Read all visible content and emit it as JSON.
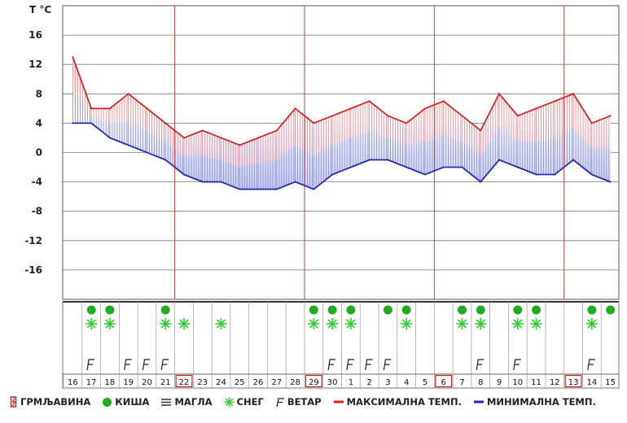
{
  "chart_data": {
    "type": "line",
    "ylabel": "T °C",
    "y_ticks": [
      16,
      12,
      8,
      4,
      0,
      -4,
      -8,
      -12,
      -16
    ],
    "ylim": [
      -20,
      20
    ],
    "x": [
      "16",
      "17",
      "18",
      "19",
      "20",
      "21",
      "22",
      "23",
      "24",
      "25",
      "26",
      "27",
      "28",
      "29",
      "30",
      "1",
      "2",
      "3",
      "4",
      "5",
      "6",
      "7",
      "8",
      "9",
      "10",
      "11",
      "12",
      "13",
      "14",
      "15"
    ],
    "highlighted_days": [
      "22",
      "29",
      "6",
      "13"
    ],
    "series": [
      {
        "name": "МАКСИМАЛНА ТЕМП.",
        "color": "#cc2222",
        "values": [
          13,
          6,
          6,
          8,
          6,
          4,
          2,
          3,
          2,
          1,
          2,
          3,
          6,
          4,
          5,
          6,
          7,
          5,
          4,
          6,
          7,
          5,
          3,
          8,
          5,
          6,
          7,
          8,
          4,
          5
        ]
      },
      {
        "name": "МИНИМАЛНА ТЕМП.",
        "color": "#2222aa",
        "values": [
          4,
          4,
          2,
          1,
          0,
          -1,
          -3,
          -4,
          -4,
          -5,
          -5,
          -5,
          -4,
          -5,
          -3,
          -2,
          -1,
          -1,
          -2,
          -3,
          -2,
          -2,
          -4,
          -1,
          -2,
          -3,
          -3,
          -1,
          -3,
          -4
        ]
      }
    ],
    "rain_days": [
      "17",
      "18",
      "21",
      "29",
      "30",
      "1",
      "3",
      "4",
      "7",
      "8",
      "10",
      "11",
      "14",
      "15"
    ],
    "snow_days": [
      "17",
      "18",
      "21",
      "22",
      "24",
      "29",
      "30",
      "1",
      "4",
      "7",
      "8",
      "10",
      "11",
      "14"
    ],
    "wind_days": [
      "17",
      "19",
      "20",
      "21",
      "30",
      "1",
      "2",
      "3",
      "8",
      "10",
      "14"
    ],
    "grid": true,
    "legend_position": "bottom"
  },
  "legend": {
    "thunder": "ГРМЉАВИНА",
    "rain": "КИША",
    "fog": "МАГЛА",
    "snow": "СНЕГ",
    "wind": "ВЕТАР",
    "max_temp": "МАКСИМАЛНА ТЕМП.",
    "min_temp": "МИНИМАЛНА ТЕМП."
  },
  "colors": {
    "max_line": "#cc2222",
    "min_line": "#2222aa",
    "rain": "#22aa22",
    "snow": "#33cc33",
    "grid": "#777777",
    "week_line": "#cc3333"
  }
}
